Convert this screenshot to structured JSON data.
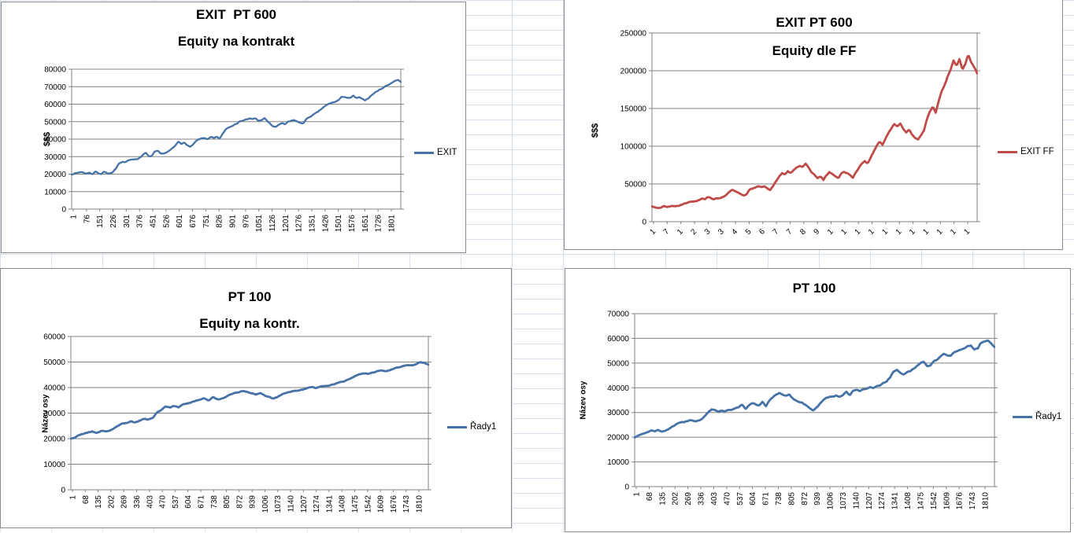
{
  "app": {
    "name": "Excel worksheet with four equity charts",
    "background_color": "#ffffff",
    "grid_color": "#d9e2ec",
    "chart_border_color": "#8a8a8a",
    "axis_color": "#808080"
  },
  "chart_data": [
    {
      "type": "line",
      "title_line1": "EXIT  PT 600",
      "title_line2": "Equity na kontrakt",
      "ylabel": "$$$",
      "xlabel": "",
      "legend": "EXIT",
      "color": "#4572A7",
      "ylim": [
        0,
        80000
      ],
      "grid": "horizontal",
      "legend_position": "right",
      "yticks": [
        "0",
        "10000",
        "20000",
        "30000",
        "40000",
        "50000",
        "60000",
        "70000",
        "80000"
      ],
      "xticklabels": [
        "1",
        "76",
        "151",
        "226",
        "301",
        "376",
        "451",
        "526",
        "601",
        "676",
        "751",
        "826",
        "901",
        "976",
        "1051",
        "1126",
        "1201",
        "1276",
        "1351",
        "1426",
        "1501",
        "1576",
        "1651",
        "1726",
        "1801"
      ],
      "xticklabel_rotation": -90,
      "values_unit": "USD, stored in thousands",
      "values_thousands": [
        20.0,
        20.3,
        20.8,
        21.3,
        20.9,
        20.3,
        21.0,
        19.9,
        21.5,
        20.6,
        20.3,
        21.6,
        20.4,
        20.2,
        21.0,
        23.5,
        26.3,
        27.2,
        26.9,
        27.6,
        28.2,
        28.7,
        28.5,
        29.5,
        31.0,
        32.2,
        30.0,
        30.3,
        32.6,
        33.2,
        31.5,
        31.8,
        32.4,
        33.3,
        34.7,
        36.2,
        38.7,
        37.5,
        37.9,
        36.6,
        35.4,
        36.9,
        38.8,
        39.9,
        40.4,
        40.7,
        39.9,
        41.2,
        40.4,
        41.2,
        40.3,
        43.2,
        45.7,
        46.9,
        47.4,
        48.8,
        49.4,
        50.3,
        50.9,
        51.3,
        51.8,
        51.3,
        51.9,
        50.4,
        50.9,
        52.0,
        50.2,
        48.7,
        47.2,
        46.9,
        48.4,
        49.3,
        48.2,
        49.9,
        50.3,
        50.8,
        50.2,
        49.2,
        48.9,
        51.2,
        52.4,
        53.4,
        54.4,
        55.4,
        56.9,
        58.3,
        59.4,
        60.3,
        60.9,
        61.4,
        62.3,
        63.9,
        64.3,
        63.7,
        63.3,
        64.9,
        63.2,
        63.9,
        62.7,
        62.3,
        63.4,
        64.9,
        66.3,
        67.4,
        68.4,
        69.4,
        70.4,
        71.3,
        72.3,
        73.4,
        73.8,
        72.9
      ]
    },
    {
      "type": "line",
      "title_line1": "EXIT PT 600",
      "title_line2": "Equity dle FF",
      "ylabel": "$$$",
      "xlabel": "",
      "legend": "EXIT FF",
      "color": "#BE4B48",
      "ylim": [
        0,
        250000
      ],
      "grid": "horizontal",
      "legend_position": "right",
      "yticks": [
        "0",
        "50000",
        "100000",
        "150000",
        "200000",
        "250000"
      ],
      "xticklabels": [
        "1",
        "7",
        "1",
        "2",
        "3",
        "3",
        "4",
        "5",
        "6",
        "7",
        "7",
        "8",
        "9",
        "1",
        "1",
        "1",
        "1",
        "1",
        "1",
        "1",
        "1",
        "1",
        "1",
        "1"
      ],
      "xticklabels_note": "rotated labels clipped to first digit in screenshot",
      "xticklabel_rotation": -45,
      "values_unit": "USD, stored in thousands",
      "values_thousands": [
        20,
        19.6,
        19.2,
        19.0,
        20.4,
        19.6,
        20.3,
        21.0,
        20.5,
        21.2,
        22.4,
        24.8,
        25.8,
        26.4,
        27.0,
        27.4,
        29.3,
        31.3,
        30.4,
        33.2,
        31.4,
        30.0,
        30.6,
        31.4,
        33.0,
        35.4,
        38.3,
        42.3,
        40.3,
        38.3,
        36.3,
        34.1,
        36.4,
        42.8,
        44.4,
        45.4,
        46.8,
        45.4,
        47.3,
        44.4,
        42.1,
        47.3,
        53.3,
        60.3,
        64.3,
        62.1,
        66.3,
        64.1,
        69.3,
        72.3,
        74.3,
        73.1,
        76.3,
        71.1,
        65.6,
        62.1,
        57.6,
        60.1,
        55.1,
        61.4,
        65.4,
        63.1,
        60.4,
        57.1,
        63.4,
        65.9,
        64.4,
        62.1,
        58.1,
        65.4,
        71.4,
        76.4,
        80.4,
        77.1,
        85.4,
        92.4,
        100.4,
        106.4,
        102.1,
        110.4,
        117.4,
        123.4,
        129.4,
        126.1,
        130.4,
        123.4,
        118.6,
        122.4,
        115.6,
        111.6,
        108.6,
        113.4,
        120.4,
        136.4,
        146.4,
        152.4,
        143.6,
        160.4,
        172.4,
        180.4,
        192.4,
        201.4,
        213.4,
        206.1,
        215.4,
        201.6,
        209.4,
        221.4,
        211.6,
        204.6,
        196.6
      ]
    },
    {
      "type": "line",
      "title_line1": "PT 100",
      "title_line2": "Equity na kontr.",
      "ylabel": "Název osy",
      "xlabel": "",
      "legend": "Řady1",
      "color": "#4572A7",
      "ylim": [
        0,
        60000
      ],
      "grid": "horizontal",
      "legend_position": "right",
      "yticks": [
        "0",
        "10000",
        "20000",
        "30000",
        "40000",
        "50000",
        "60000"
      ],
      "xticklabels": [
        "1",
        "68",
        "135",
        "202",
        "269",
        "336",
        "403",
        "470",
        "537",
        "604",
        "671",
        "738",
        "805",
        "872",
        "939",
        "1006",
        "1073",
        "1140",
        "1207",
        "1274",
        "1341",
        "1408",
        "1475",
        "1542",
        "1609",
        "1676",
        "1743",
        "1810"
      ],
      "xticklabel_rotation": -90,
      "values_unit": "USD, stored in thousands",
      "values_thousands": [
        20.0,
        20.5,
        21.4,
        22.0,
        22.5,
        22.8,
        22.3,
        23.0,
        22.8,
        23.2,
        24.0,
        25.0,
        25.8,
        26.3,
        26.8,
        26.3,
        27.3,
        27.8,
        27.3,
        28.3,
        30.2,
        31.3,
        32.7,
        32.3,
        32.8,
        32.3,
        33.3,
        33.8,
        34.3,
        34.8,
        35.3,
        35.8,
        34.8,
        36.2,
        35.3,
        35.8,
        36.3,
        37.3,
        38.0,
        38.3,
        38.5,
        38.3,
        37.8,
        37.3,
        37.8,
        36.8,
        36.3,
        35.6,
        36.3,
        37.3,
        37.8,
        38.3,
        38.7,
        38.8,
        39.3,
        39.8,
        40.2,
        39.8,
        40.3,
        40.7,
        40.8,
        41.3,
        41.8,
        42.3,
        42.8,
        43.8,
        44.7,
        45.3,
        45.8,
        45.3,
        45.8,
        46.3,
        46.8,
        46.3,
        46.8,
        47.3,
        47.8,
        48.3,
        48.7,
        48.8,
        49.2,
        49.9,
        49.7,
        49.1
      ]
    },
    {
      "type": "line",
      "title_line1": "PT 100",
      "title_line2": "",
      "ylabel": "Název osy",
      "xlabel": "",
      "legend": "Řady1",
      "color": "#4572A7",
      "ylim": [
        0,
        70000
      ],
      "grid": "horizontal",
      "legend_position": "right",
      "yticks": [
        "0",
        "10000",
        "20000",
        "30000",
        "40000",
        "50000",
        "60000",
        "70000"
      ],
      "xticklabels": [
        "1",
        "68",
        "135",
        "202",
        "269",
        "336",
        "403",
        "470",
        "537",
        "604",
        "671",
        "738",
        "805",
        "872",
        "939",
        "1006",
        "1073",
        "1140",
        "1207",
        "1274",
        "1341",
        "1408",
        "1475",
        "1542",
        "1609",
        "1676",
        "1743",
        "1810"
      ],
      "xticklabel_rotation": -90,
      "values_unit": "USD, stored in thousands",
      "values_thousands": [
        20.0,
        20.8,
        21.3,
        21.8,
        22.3,
        22.6,
        22.4,
        22.8,
        22.3,
        22.8,
        23.3,
        24.3,
        24.8,
        25.7,
        26.0,
        26.3,
        26.8,
        27.0,
        26.5,
        26.8,
        27.3,
        28.8,
        30.3,
        31.3,
        30.8,
        30.3,
        30.8,
        30.5,
        31.0,
        31.3,
        31.8,
        32.3,
        33.2,
        31.4,
        32.8,
        33.7,
        33.3,
        32.8,
        34.2,
        32.4,
        34.8,
        36.2,
        37.3,
        37.8,
        37.3,
        36.8,
        37.3,
        35.8,
        34.8,
        34.3,
        33.8,
        32.8,
        31.8,
        30.9,
        31.8,
        33.3,
        34.8,
        35.8,
        36.3,
        36.3,
        36.8,
        36.3,
        37.3,
        38.2,
        36.9,
        38.7,
        39.3,
        38.4,
        39.3,
        39.8,
        40.3,
        40.0,
        40.5,
        41.0,
        41.8,
        42.8,
        44.3,
        46.7,
        47.2,
        45.9,
        45.3,
        46.3,
        46.8,
        47.8,
        48.8,
        50.2,
        50.7,
        48.9,
        49.3,
        50.8,
        51.3,
        52.8,
        53.8,
        53.3,
        53.0,
        54.3,
        54.8,
        55.3,
        55.8,
        56.8,
        57.3,
        55.4,
        55.8,
        58.2,
        58.8,
        59.4,
        57.9,
        56.4
      ]
    }
  ]
}
